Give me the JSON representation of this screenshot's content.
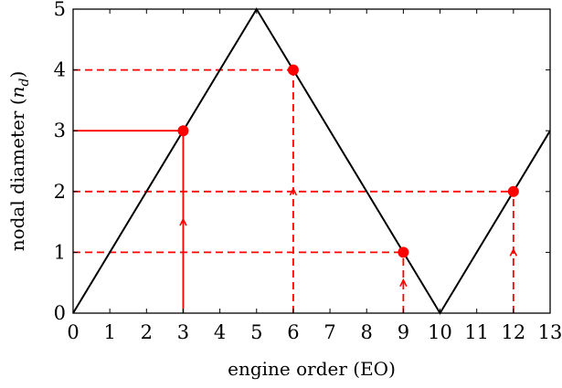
{
  "chart_data": {
    "type": "line",
    "xlabel": "engine order (EO)",
    "ylabel": "nodal diameter",
    "ylabel_symbol": "n",
    "ylabel_subscript": "d",
    "xlim": [
      0,
      13
    ],
    "ylim": [
      0,
      5
    ],
    "xticks": [
      0,
      1,
      2,
      3,
      4,
      5,
      6,
      7,
      8,
      9,
      10,
      11,
      12,
      13
    ],
    "yticks": [
      0,
      1,
      2,
      3,
      4,
      5
    ],
    "grid": false,
    "series": [
      {
        "role": "aliasing-curve",
        "color": "#000000",
        "points": [
          [
            0,
            0
          ],
          [
            5,
            5
          ],
          [
            10,
            0
          ],
          [
            13,
            3
          ]
        ]
      }
    ],
    "markers": [
      {
        "x": 3,
        "y": 3,
        "color": "#ff0000",
        "style": "solid"
      },
      {
        "x": 6,
        "y": 4,
        "color": "#ff0000",
        "style": "dashed"
      },
      {
        "x": 9,
        "y": 1,
        "color": "#ff0000",
        "style": "dashed"
      },
      {
        "x": 12,
        "y": 2,
        "color": "#ff0000",
        "style": "dashed"
      }
    ]
  }
}
